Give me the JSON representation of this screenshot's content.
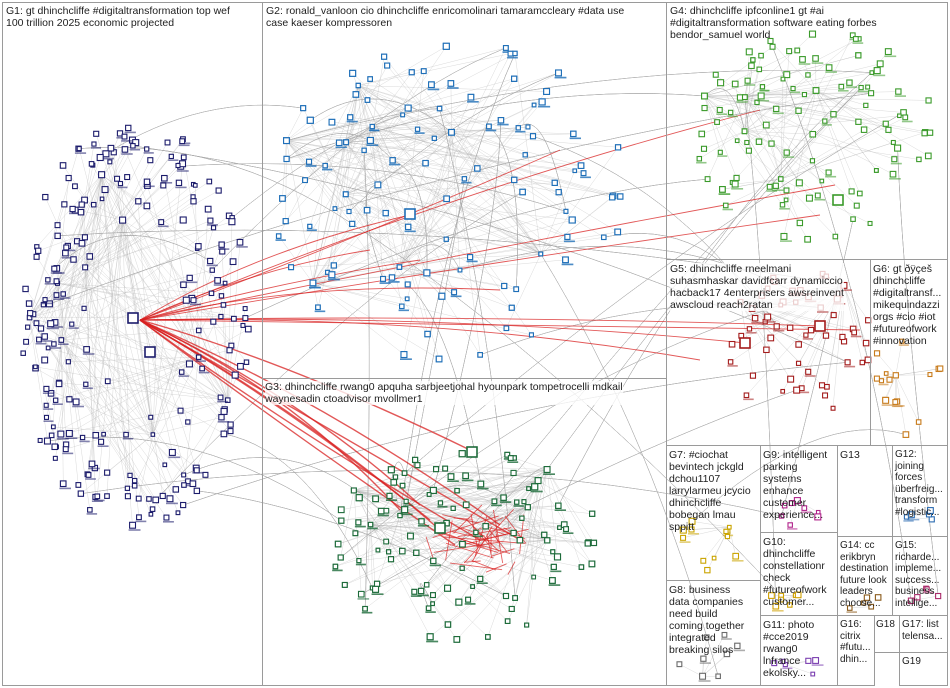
{
  "groups": [
    {
      "id": "G1",
      "text": "G1: gt dhinchcliffe #digitaltransformation top wef\n100 trillion 2025 economic projected"
    },
    {
      "id": "G2",
      "text": "G2: ronald_vanloon cio dhinchcliffe enricomolinari tamaramccleary #data use\ncase kaeser kompressoren"
    },
    {
      "id": "G3",
      "text": "G3: dhinchcliffe rwang0 apquha sarbjeetjohal hyounpark tompetrocelli mdkail\nwaynesadin ctoadvisor mvollmer1"
    },
    {
      "id": "G4",
      "text": "G4: dhinchcliffe ipfconline1 gt #ai\n#digitaltransformation software eating forbes\nbendor_samuel world"
    },
    {
      "id": "G5",
      "text": "G5: dhinchcliffe rneelmani\nsuhasmhaskar davidfcarr dynamiccio\nhacback17 4enterprisers awsreinvent\nawscloud reach2ratan"
    },
    {
      "id": "G6",
      "text": "G6: gt ðÿçeš\ndhinchcliffe\n#digitaltransf...\nmikequindazzi\norgs #cio #iot\n#futureofwork\n#innovation"
    },
    {
      "id": "G7",
      "text": "G7: #ciochat\nbevintech jckgld\ndchou1107\nlarrylarmeu jcycio\ndhinchcliffe\nbobegan lmau\nsppitt"
    },
    {
      "id": "G8",
      "text": "G8: business\ndata companies\nneed build\ncoming together\nintegrated\nbreaking silos"
    },
    {
      "id": "G9",
      "text": "G9: intelligent\nparking\nsystems\nenhance\ncustomer\nexperience..."
    },
    {
      "id": "G10",
      "text": "G10:\ndhinchcliffe\nconstellationr\ncheck\n#futureofwork\ncustomer..."
    },
    {
      "id": "G11",
      "text": "G11: photo\n#cce2019\nrwang0\nlnfrance\nekolsky..."
    },
    {
      "id": "G12",
      "text": "G12:\njoining\nforces\nüberfreig...\ntransform\n#logistic..."
    },
    {
      "id": "G13",
      "text": "G13"
    },
    {
      "id": "G14",
      "text": "G14: cc\nerikbryn\ndestination\nfuture look\nleaders\nchoose..."
    },
    {
      "id": "G15",
      "text": "G15:\nricharde...\nimpleme...\nsuccess...\nbusiness\nintellige..."
    },
    {
      "id": "G16",
      "text": "G16:\ncitrix\n#futu...\ndhin..."
    },
    {
      "id": "G17",
      "text": "G17: list\ntelensa..."
    },
    {
      "id": "G18",
      "text": "G18"
    },
    {
      "id": "G19",
      "text": "G19"
    }
  ],
  "colors": {
    "G1": "#1b1b6b",
    "G2": "#1f6fb8",
    "G3": "#1d6b3a",
    "G4": "#3a9a2a",
    "G5": "#a31b1b",
    "G6": "#c77a1a",
    "G7": "#caa400",
    "G8": "#6a6a6a",
    "G9": "#b0228a",
    "G10": "#d0a000",
    "G11": "#7b3fb0",
    "G12": "#2a6ab0",
    "G14": "#8a5a1a",
    "G15": "#aa2a6a",
    "edge": "#b3b3b3",
    "hub_edge": "#d82020",
    "pane_border": "#9a9a9a"
  }
}
